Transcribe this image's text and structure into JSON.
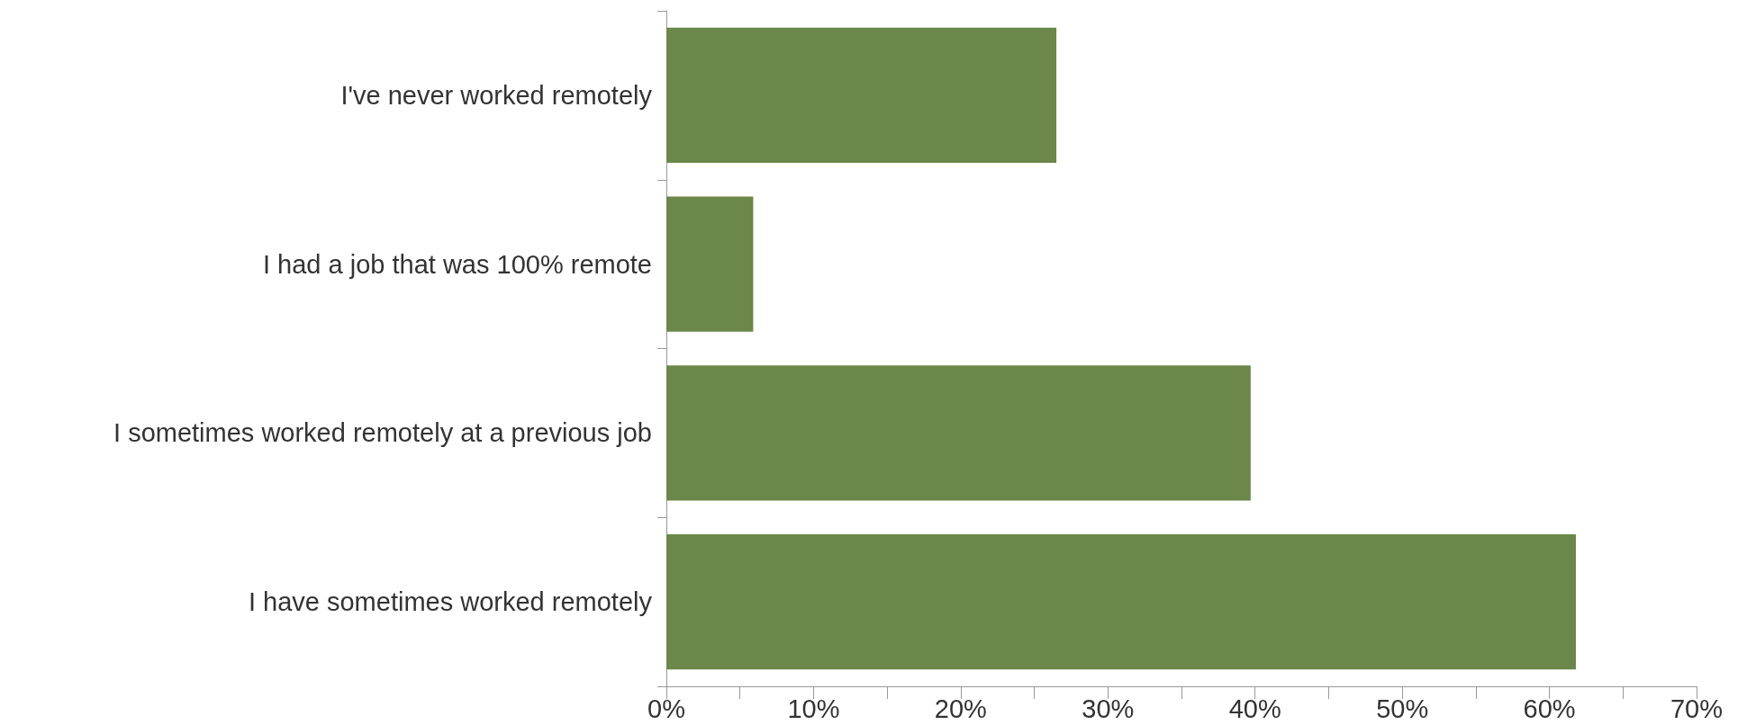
{
  "chart_data": {
    "type": "bar",
    "orientation": "horizontal",
    "categories": [
      "I've never worked remotely",
      "I had a job that was 100% remote",
      "I sometimes worked remotely at a previous job",
      "I have sometimes worked remotely"
    ],
    "values": [
      26.5,
      5.9,
      39.7,
      61.8
    ],
    "color": "#6b8749",
    "xlim": [
      0,
      70
    ],
    "xticks": [
      {
        "value": 0,
        "label": "0%"
      },
      {
        "value": 5,
        "label": null
      },
      {
        "value": 10,
        "label": "10%"
      },
      {
        "value": 15,
        "label": null
      },
      {
        "value": 20,
        "label": "20%"
      },
      {
        "value": 25,
        "label": null
      },
      {
        "value": 30,
        "label": "30%"
      },
      {
        "value": 35,
        "label": null
      },
      {
        "value": 40,
        "label": "40%"
      },
      {
        "value": 45,
        "label": null
      },
      {
        "value": 50,
        "label": "50%"
      },
      {
        "value": 55,
        "label": null
      },
      {
        "value": 60,
        "label": "60%"
      },
      {
        "value": 65,
        "label": null
      },
      {
        "value": 70,
        "label": "70%"
      }
    ],
    "grid": false
  }
}
